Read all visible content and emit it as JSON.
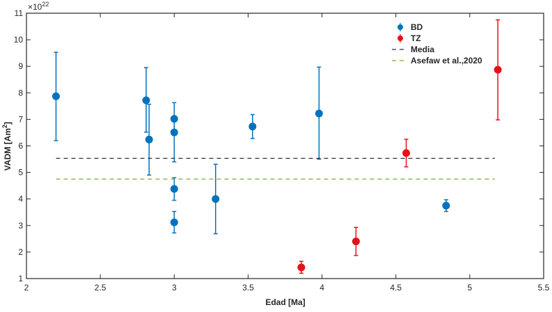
{
  "chart_data": {
    "type": "scatter",
    "title": "",
    "xlabel": "Edad [Ma]",
    "ylabel": "VADM [Am",
    "ylabel_sup": "2",
    "ylabel_close": "]",
    "y_multiplier": "×10",
    "y_multiplier_exp": "22",
    "xlim": [
      2,
      5.5
    ],
    "ylim": [
      1,
      11
    ],
    "xticks": [
      "2",
      "2.5",
      "3",
      "3.5",
      "4",
      "4.5",
      "5",
      "5.5"
    ],
    "yticks": [
      "1",
      "2",
      "3",
      "4",
      "5",
      "6",
      "7",
      "8",
      "9",
      "10",
      "11"
    ],
    "grid": false,
    "legend_position": "top-right",
    "series": [
      {
        "name": "BD",
        "color": "#0072BD",
        "kind": "errorbar",
        "points": [
          {
            "x": 2.2,
            "y": 7.87,
            "lo": 6.2,
            "hi": 9.53
          },
          {
            "x": 2.81,
            "y": 7.72,
            "lo": 6.52,
            "hi": 8.95
          },
          {
            "x": 2.83,
            "y": 6.24,
            "lo": 4.9,
            "hi": 7.57
          },
          {
            "x": 3.0,
            "y": 7.02,
            "lo": 6.4,
            "hi": 7.63
          },
          {
            "x": 3.0,
            "y": 6.51,
            "lo": 5.4,
            "hi": 7.1
          },
          {
            "x": 3.0,
            "y": 4.38,
            "lo": 3.95,
            "hi": 4.8
          },
          {
            "x": 3.0,
            "y": 3.12,
            "lo": 2.72,
            "hi": 3.53
          },
          {
            "x": 3.28,
            "y": 4.0,
            "lo": 2.69,
            "hi": 5.31
          },
          {
            "x": 3.53,
            "y": 6.73,
            "lo": 6.28,
            "hi": 7.18
          },
          {
            "x": 3.98,
            "y": 7.22,
            "lo": 5.5,
            "hi": 8.97
          },
          {
            "x": 4.84,
            "y": 3.75,
            "lo": 3.53,
            "hi": 3.97
          }
        ]
      },
      {
        "name": "TZ",
        "color": "#E8101A",
        "kind": "errorbar",
        "points": [
          {
            "x": 3.86,
            "y": 1.42,
            "lo": 1.2,
            "hi": 1.65
          },
          {
            "x": 4.23,
            "y": 2.4,
            "lo": 1.87,
            "hi": 2.93
          },
          {
            "x": 4.57,
            "y": 5.73,
            "lo": 5.21,
            "hi": 6.25
          },
          {
            "x": 5.19,
            "y": 8.87,
            "lo": 6.98,
            "hi": 10.75
          }
        ]
      },
      {
        "name": "Media",
        "color": "#333333",
        "kind": "hline",
        "y": 5.53,
        "x_range": [
          2.2,
          5.17
        ]
      },
      {
        "name": "Asefaw et al.,2020",
        "color": "#77AC30",
        "kind": "hline",
        "y": 4.75,
        "x_range": [
          2.2,
          5.17
        ]
      }
    ]
  }
}
